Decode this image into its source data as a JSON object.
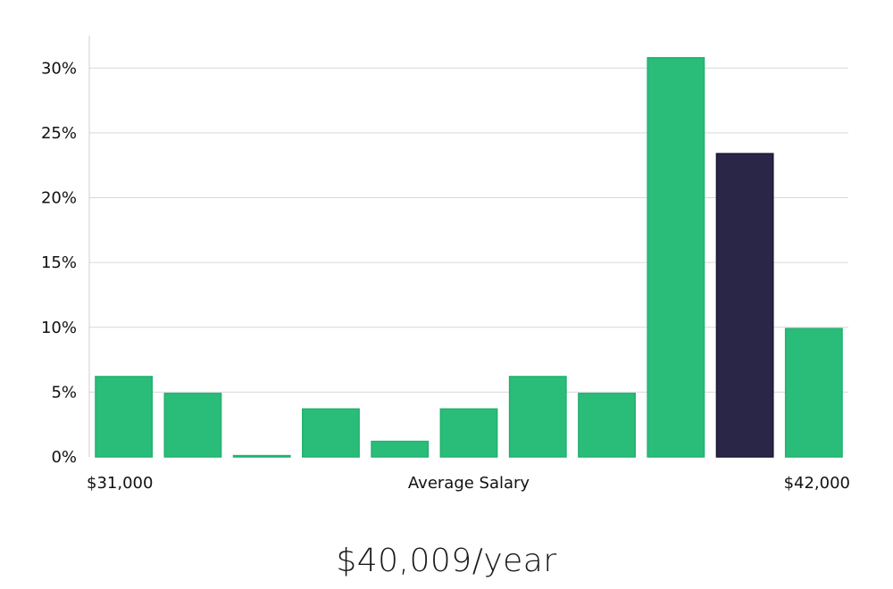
{
  "chart_data": {
    "type": "bar",
    "xlabel": "Average Salary",
    "x_min_label": "$31,000",
    "x_max_label": "$42,000",
    "ylabel": "",
    "ylim": [
      0,
      32.5
    ],
    "yticks": [
      0,
      5,
      10,
      15,
      20,
      25,
      30
    ],
    "ytick_labels": [
      "0%",
      "5%",
      "10%",
      "15%",
      "20%",
      "25%",
      "30%"
    ],
    "values": [
      6.2,
      4.9,
      0.1,
      3.7,
      1.2,
      3.7,
      6.2,
      4.9,
      30.8,
      23.4,
      9.9
    ],
    "highlight_index": 9,
    "grid": true
  },
  "colors": {
    "bar": "#2abd7a",
    "bar_highlight": "#2a2647",
    "grid": "#d9d9d9",
    "axis": "#cccccc"
  },
  "summary": {
    "salary_text": "$40,009/year"
  }
}
